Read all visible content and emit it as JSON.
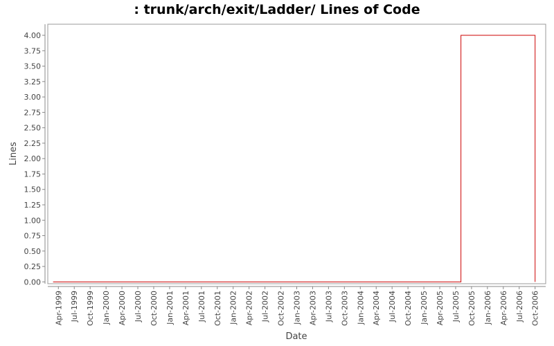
{
  "chart_data": {
    "type": "step-line",
    "title": ": trunk/arch/exit/Ladder/ Lines of Code",
    "x_label": "Date",
    "y_label": "Lines",
    "series": [
      {
        "name": "Lines",
        "color": "#cc0000",
        "x": [
          "1999-03",
          "2005-08",
          "2006-10"
        ],
        "values": [
          0,
          4,
          0
        ]
      }
    ],
    "xlim": [
      "1999-02",
      "2006-12"
    ],
    "xticks": [
      {
        "value": "1999-04",
        "label": "Apr-1999"
      },
      {
        "value": "1999-07",
        "label": "Jul-1999"
      },
      {
        "value": "1999-10",
        "label": "Oct-1999"
      },
      {
        "value": "2000-01",
        "label": "Jan-2000"
      },
      {
        "value": "2000-04",
        "label": "Apr-2000"
      },
      {
        "value": "2000-07",
        "label": "Jul-2000"
      },
      {
        "value": "2000-10",
        "label": "Oct-2000"
      },
      {
        "value": "2001-01",
        "label": "Jan-2001"
      },
      {
        "value": "2001-04",
        "label": "Apr-2001"
      },
      {
        "value": "2001-07",
        "label": "Jul-2001"
      },
      {
        "value": "2001-10",
        "label": "Oct-2001"
      },
      {
        "value": "2002-01",
        "label": "Jan-2002"
      },
      {
        "value": "2002-04",
        "label": "Apr-2002"
      },
      {
        "value": "2002-07",
        "label": "Jul-2002"
      },
      {
        "value": "2002-10",
        "label": "Oct-2002"
      },
      {
        "value": "2003-01",
        "label": "Jan-2003"
      },
      {
        "value": "2003-04",
        "label": "Apr-2003"
      },
      {
        "value": "2003-07",
        "label": "Jul-2003"
      },
      {
        "value": "2003-10",
        "label": "Oct-2003"
      },
      {
        "value": "2004-01",
        "label": "Jan-2004"
      },
      {
        "value": "2004-04",
        "label": "Apr-2004"
      },
      {
        "value": "2004-07",
        "label": "Jul-2004"
      },
      {
        "value": "2004-10",
        "label": "Oct-2004"
      },
      {
        "value": "2005-01",
        "label": "Jan-2005"
      },
      {
        "value": "2005-04",
        "label": "Apr-2005"
      },
      {
        "value": "2005-07",
        "label": "Jul-2005"
      },
      {
        "value": "2005-10",
        "label": "Oct-2005"
      },
      {
        "value": "2006-01",
        "label": "Jan-2006"
      },
      {
        "value": "2006-04",
        "label": "Apr-2006"
      },
      {
        "value": "2006-07",
        "label": "Jul-2006"
      },
      {
        "value": "2006-10",
        "label": "Oct-2006"
      }
    ],
    "ylim": [
      -0.03,
      4.18
    ],
    "yticks": [
      {
        "value": 0,
        "label": "0.00"
      },
      {
        "value": 0.25,
        "label": "0.25"
      },
      {
        "value": 0.5,
        "label": "0.50"
      },
      {
        "value": 0.75,
        "label": "0.75"
      },
      {
        "value": 1,
        "label": "1.00"
      },
      {
        "value": 1.25,
        "label": "1.25"
      },
      {
        "value": 1.5,
        "label": "1.50"
      },
      {
        "value": 1.75,
        "label": "1.75"
      },
      {
        "value": 2,
        "label": "2.00"
      },
      {
        "value": 2.25,
        "label": "2.25"
      },
      {
        "value": 2.5,
        "label": "2.50"
      },
      {
        "value": 2.75,
        "label": "2.75"
      },
      {
        "value": 3,
        "label": "3.00"
      },
      {
        "value": 3.25,
        "label": "3.25"
      },
      {
        "value": 3.5,
        "label": "3.50"
      },
      {
        "value": 3.75,
        "label": "3.75"
      },
      {
        "value": 4,
        "label": "4.00"
      }
    ],
    "grid": false
  }
}
